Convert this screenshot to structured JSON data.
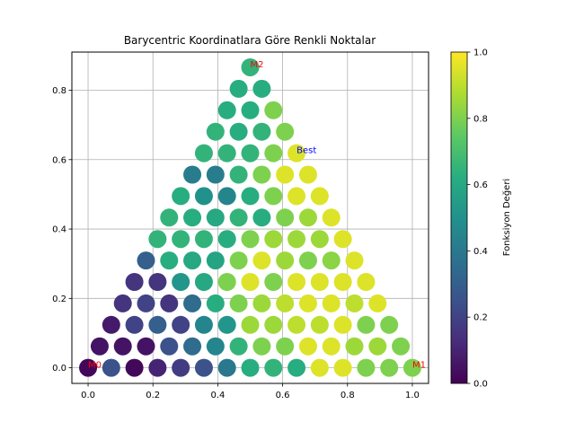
{
  "chart_data": {
    "type": "scatter",
    "title": "Barycentric Koordinatlara Göre Renkli Noktalar",
    "xlabel": "",
    "ylabel": "",
    "xlim": [
      -0.05,
      1.05
    ],
    "ylim": [
      -0.045,
      0.91
    ],
    "grid": true,
    "x_ticks": [
      0.0,
      0.2,
      0.4,
      0.6,
      0.8,
      1.0
    ],
    "x_tick_labels": [
      "0.0",
      "0.2",
      "0.4",
      "0.6",
      "0.8",
      "1.0"
    ],
    "y_ticks": [
      0.0,
      0.2,
      0.4,
      0.6,
      0.8
    ],
    "y_tick_labels": [
      "0.0",
      "0.2",
      "0.4",
      "0.6",
      "0.8"
    ],
    "colorbar": {
      "label": "Fonksiyon Değeri",
      "colormap": "viridis",
      "range": [
        0.0,
        1.0
      ],
      "ticks": [
        0.0,
        0.2,
        0.4,
        0.6,
        0.8,
        1.0
      ],
      "tick_labels": [
        "0.0",
        "0.2",
        "0.4",
        "0.6",
        "0.8",
        "1.0"
      ]
    },
    "annotations": [
      {
        "text": "M0",
        "x": 0.0,
        "y": 0.0,
        "color": "#ff0000"
      },
      {
        "text": "M1",
        "x": 1.0,
        "y": 0.0,
        "color": "#ff0000"
      },
      {
        "text": "M2",
        "x": 0.5,
        "y": 0.866,
        "color": "#ff0000"
      },
      {
        "text": "Best",
        "x": 0.643,
        "y": 0.619,
        "color": "#0000ff"
      }
    ],
    "points": {
      "rows": [
        [
          0.02,
          0.25,
          0.02,
          0.1,
          0.18,
          0.25,
          0.4,
          0.62,
          0.65,
          0.62,
          0.95,
          0.95,
          0.8,
          0.8,
          0.8
        ],
        [
          0.05,
          0.05,
          0.05,
          0.25,
          0.35,
          0.45,
          0.65,
          0.8,
          0.8,
          0.95,
          0.95,
          0.85,
          0.85,
          0.8
        ],
        [
          0.07,
          0.2,
          0.3,
          0.2,
          0.45,
          0.52,
          0.85,
          0.85,
          0.9,
          0.9,
          0.95,
          0.8,
          0.8
        ],
        [
          0.15,
          0.2,
          0.15,
          0.35,
          0.62,
          0.8,
          0.85,
          0.9,
          0.95,
          0.95,
          0.9,
          0.95
        ],
        [
          0.15,
          0.15,
          0.52,
          0.6,
          0.8,
          0.95,
          0.8,
          0.95,
          0.95,
          0.95,
          0.95
        ],
        [
          0.3,
          0.62,
          0.6,
          0.58,
          0.8,
          0.95,
          0.85,
          0.8,
          0.82,
          0.95
        ],
        [
          0.65,
          0.65,
          0.65,
          0.62,
          0.8,
          0.85,
          0.85,
          0.85,
          0.95
        ],
        [
          0.65,
          0.62,
          0.6,
          0.65,
          0.62,
          0.8,
          0.85,
          0.95
        ],
        [
          0.62,
          0.5,
          0.45,
          0.62,
          0.8,
          0.95,
          0.95
        ],
        [
          0.42,
          0.42,
          0.65,
          0.8,
          0.95,
          0.95
        ],
        [
          0.65,
          0.65,
          0.65,
          0.8,
          0.95
        ],
        [
          0.65,
          0.62,
          0.65,
          0.8
        ],
        [
          0.62,
          0.62,
          0.8
        ],
        [
          0.62,
          0.62
        ],
        [
          0.65
        ]
      ]
    }
  }
}
